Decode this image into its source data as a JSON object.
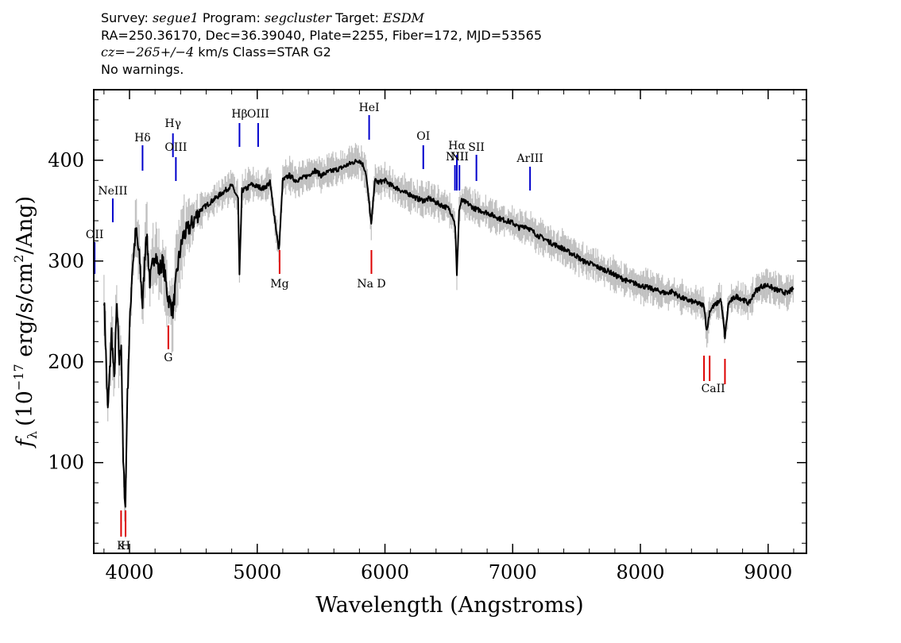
{
  "header": {
    "line1": {
      "survey_label": "Survey: ",
      "survey": "segue1",
      "program_label": " Program: ",
      "program": "segcluster",
      "target_label": " Target: ",
      "target": "ESDM"
    },
    "line2": "RA=250.36170, Dec=36.39040, Plate=2255, Fiber=172, MJD=53565",
    "line3": {
      "cz_label": "cz=",
      "cz_value": "−265+/−4",
      "cz_unit": " km/s Class=STAR G2"
    },
    "line4": "No warnings."
  },
  "chart_data": {
    "type": "line",
    "xlabel": "Wavelength (Angstroms)",
    "ylabel": "f_λ (10^-17 erg/s/cm^2/Ang)",
    "ylabel_parts": {
      "symbol": "f",
      "sub": "λ",
      "pre": "(10",
      "exp": "−17",
      "mid": " erg/s/cm",
      "exp2": "2",
      "post": "/Ang)"
    },
    "xlim": [
      3720,
      9300
    ],
    "ylim": [
      10,
      470
    ],
    "x_ticks": [
      4000,
      5000,
      6000,
      7000,
      8000,
      9000
    ],
    "y_ticks": [
      100,
      200,
      300,
      400
    ],
    "grid": false,
    "colors": {
      "flux": "#000000",
      "noise": "#c0c0c0",
      "emission": "#0000cc",
      "absorption": "#dd0000",
      "frame": "#000000"
    },
    "series": [
      {
        "x": [
          3800,
          3830,
          3860,
          3880,
          3900,
          3920,
          3935,
          3950,
          3968,
          3980,
          4000,
          4020,
          4050,
          4080,
          4102,
          4130,
          4160,
          4200,
          4230,
          4260,
          4300,
          4340,
          4360,
          4383,
          4420,
          4480,
          4550,
          4600,
          4650,
          4700,
          4750,
          4800,
          4850,
          4861,
          4880,
          4920,
          4950,
          5000,
          5050,
          5100,
          5170,
          5200,
          5250,
          5300,
          5350,
          5400,
          5450,
          5500,
          5550,
          5600,
          5650,
          5700,
          5750,
          5800,
          5830,
          5850,
          5870,
          5893,
          5920,
          5950,
          6000,
          6050,
          6100,
          6150,
          6200,
          6250,
          6300,
          6350,
          6400,
          6450,
          6500,
          6530,
          6550,
          6563,
          6580,
          6600,
          6650,
          6700,
          6750,
          6800,
          6850,
          6900,
          6950,
          7000,
          7050,
          7100,
          7150,
          7200,
          7250,
          7300,
          7350,
          7400,
          7450,
          7500,
          7550,
          7600,
          7650,
          7700,
          7750,
          7800,
          7850,
          7900,
          7950,
          8000,
          8050,
          8100,
          8150,
          8200,
          8250,
          8300,
          8350,
          8400,
          8450,
          8498,
          8520,
          8542,
          8570,
          8600,
          8630,
          8662,
          8690,
          8720,
          8750,
          8800,
          8850,
          8900,
          8950,
          9000,
          9050,
          9100,
          9150,
          9200
        ],
        "y": [
          265,
          150,
          230,
          180,
          255,
          200,
          220,
          100,
          55,
          150,
          230,
          290,
          330,
          300,
          255,
          330,
          280,
          310,
          290,
          300,
          265,
          250,
          275,
          300,
          325,
          335,
          350,
          355,
          360,
          365,
          370,
          375,
          362,
          285,
          370,
          372,
          376,
          374,
          372,
          378,
          310,
          380,
          385,
          380,
          382,
          385,
          390,
          385,
          388,
          390,
          392,
          395,
          398,
          400,
          395,
          388,
          365,
          335,
          380,
          378,
          380,
          375,
          372,
          368,
          366,
          362,
          360,
          362,
          358,
          355,
          352,
          345,
          335,
          285,
          350,
          360,
          357,
          352,
          350,
          348,
          345,
          342,
          340,
          338,
          333,
          335,
          330,
          325,
          322,
          318,
          315,
          312,
          308,
          305,
          300,
          298,
          295,
          292,
          290,
          286,
          283,
          280,
          278,
          276,
          274,
          272,
          270,
          268,
          270,
          265,
          262,
          260,
          258,
          256,
          230,
          250,
          255,
          258,
          262,
          225,
          258,
          262,
          265,
          262,
          258,
          270,
          275,
          276,
          272,
          270,
          268,
          273
        ],
        "noise_band": 12
      }
    ],
    "emission_lines": [
      {
        "label": "OII",
        "wavelength": 3727
      },
      {
        "label": "NeIII",
        "wavelength": 3869
      },
      {
        "label": "Hδ",
        "wavelength": 4102
      },
      {
        "label": "Hγ",
        "wavelength": 4340
      },
      {
        "label": "OIII",
        "wavelength": 4363
      },
      {
        "label": "Hβ",
        "wavelength": 4861
      },
      {
        "label": "OIII",
        "wavelength": 5007
      },
      {
        "label": "HeI",
        "wavelength": 5876
      },
      {
        "label": "OI",
        "wavelength": 6300
      },
      {
        "label": "NII",
        "wavelength": 6548
      },
      {
        "label": "Hα",
        "wavelength": 6563
      },
      {
        "label": "NII",
        "wavelength": 6583
      },
      {
        "label": "SII",
        "wavelength": 6716
      },
      {
        "label": "ArIII",
        "wavelength": 7136
      }
    ],
    "absorption_lines": [
      {
        "label": "K",
        "wavelength": 3934
      },
      {
        "label": "H",
        "wavelength": 3969
      },
      {
        "label": "G",
        "wavelength": 4304
      },
      {
        "label": "Mg",
        "wavelength": 5175
      },
      {
        "label": "Na D",
        "wavelength": 5894
      },
      {
        "label": "CaII",
        "wavelength": 8498
      },
      {
        "label": "CaII",
        "wavelength": 8542
      },
      {
        "label": "CaII",
        "wavelength": 8662
      }
    ]
  }
}
